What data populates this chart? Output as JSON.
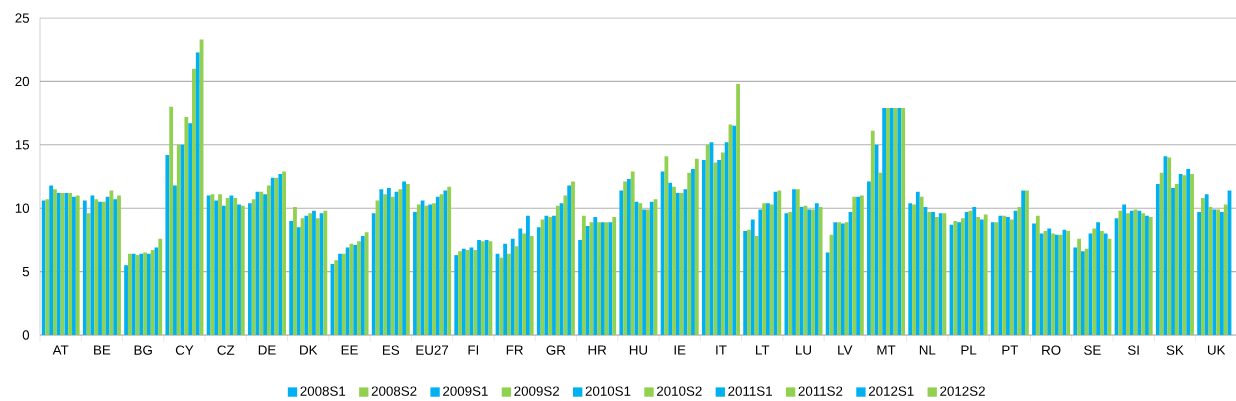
{
  "chart_data": {
    "type": "bar",
    "categories": [
      "AT",
      "BE",
      "BG",
      "CY",
      "CZ",
      "DE",
      "DK",
      "EE",
      "ES",
      "EU27",
      "FI",
      "FR",
      "GR",
      "HR",
      "HU",
      "IE",
      "IT",
      "LT",
      "LU",
      "LV",
      "MT",
      "NL",
      "PL",
      "PT",
      "RO",
      "SE",
      "SI",
      "SK",
      "UK"
    ],
    "ylim": [
      0,
      25
    ],
    "yticks": [
      0,
      5,
      10,
      15,
      20,
      25
    ],
    "grid": "y",
    "legend": "bottom",
    "series": [
      {
        "name": "2008S1",
        "color": "#00b0f0",
        "values": [
          10.6,
          10.6,
          5.5,
          14.2,
          11.0,
          10.4,
          9.0,
          5.6,
          9.6,
          9.7,
          6.3,
          6.4,
          8.5,
          7.5,
          11.4,
          12.9,
          13.8,
          8.2,
          9.6,
          6.5,
          12.1,
          10.4,
          8.7,
          8.9,
          8.8,
          6.9,
          9.2,
          11.9,
          9.7
        ]
      },
      {
        "name": "2008S2",
        "color": "#92d050",
        "values": [
          10.7,
          9.6,
          6.4,
          18.0,
          11.1,
          10.7,
          10.1,
          5.9,
          10.6,
          10.3,
          6.6,
          6.1,
          9.1,
          9.4,
          12.1,
          14.1,
          15.0,
          8.3,
          9.7,
          7.9,
          16.1,
          10.3,
          9.0,
          8.9,
          9.4,
          7.6,
          9.8,
          12.8,
          10.8
        ]
      },
      {
        "name": "2009S1",
        "color": "#00b0f0",
        "values": [
          11.8,
          11.0,
          6.4,
          11.8,
          10.6,
          11.3,
          8.5,
          6.4,
          11.5,
          10.6,
          6.8,
          7.2,
          9.4,
          8.6,
          12.3,
          12.0,
          15.2,
          9.1,
          11.5,
          8.9,
          15.0,
          11.3,
          8.9,
          9.4,
          8.0,
          6.6,
          10.3,
          14.1,
          11.1
        ]
      },
      {
        "name": "2009S2",
        "color": "#92d050",
        "values": [
          11.5,
          10.7,
          6.3,
          15.0,
          11.1,
          11.3,
          9.2,
          6.4,
          11.1,
          10.2,
          6.7,
          6.4,
          9.3,
          8.9,
          12.9,
          11.7,
          13.6,
          7.8,
          11.5,
          8.9,
          12.8,
          10.9,
          9.2,
          9.4,
          8.2,
          6.8,
          9.6,
          14.0,
          10.1
        ]
      },
      {
        "name": "2010S1",
        "color": "#00b0f0",
        "values": [
          11.2,
          10.5,
          6.4,
          15.0,
          10.2,
          11.1,
          9.4,
          6.9,
          11.6,
          10.3,
          6.9,
          7.6,
          9.4,
          9.3,
          10.5,
          11.2,
          13.8,
          9.9,
          10.1,
          8.8,
          17.9,
          10.1,
          9.7,
          9.3,
          8.4,
          8.0,
          9.8,
          11.6,
          9.9
        ]
      },
      {
        "name": "2010S2",
        "color": "#92d050",
        "values": [
          11.2,
          10.5,
          6.5,
          17.2,
          10.8,
          11.8,
          9.6,
          7.2,
          10.9,
          10.4,
          6.7,
          7.0,
          10.2,
          8.9,
          10.4,
          11.2,
          14.4,
          10.4,
          10.2,
          8.9,
          17.9,
          9.7,
          9.8,
          9.1,
          8.0,
          8.4,
          9.9,
          11.9,
          9.9
        ]
      },
      {
        "name": "2011S1",
        "color": "#00b0f0",
        "values": [
          11.2,
          10.9,
          6.4,
          16.7,
          11.0,
          12.4,
          9.8,
          7.1,
          11.3,
          10.9,
          7.5,
          8.4,
          10.4,
          8.9,
          9.9,
          11.5,
          15.2,
          10.4,
          9.9,
          9.7,
          17.9,
          9.7,
          10.1,
          9.8,
          7.9,
          8.9,
          9.8,
          12.7,
          9.7
        ]
      },
      {
        "name": "2011S2",
        "color": "#92d050",
        "values": [
          11.2,
          11.4,
          6.7,
          21.0,
          10.8,
          12.4,
          9.2,
          7.4,
          11.5,
          11.1,
          7.4,
          8.0,
          11.0,
          8.9,
          9.9,
          12.8,
          16.6,
          10.3,
          9.9,
          10.9,
          17.9,
          9.3,
          9.3,
          10.1,
          7.9,
          8.2,
          9.6,
          12.6,
          10.3
        ]
      },
      {
        "name": "2012S1",
        "color": "#00b0f0",
        "values": [
          10.9,
          10.7,
          6.9,
          22.3,
          10.3,
          12.7,
          9.6,
          7.8,
          12.1,
          11.4,
          7.5,
          9.4,
          11.8,
          8.9,
          10.5,
          13.1,
          16.5,
          11.3,
          10.4,
          10.9,
          17.9,
          9.6,
          9.1,
          11.4,
          8.3,
          8.0,
          9.4,
          13.1,
          11.4
        ]
      },
      {
        "name": "2012S2",
        "color": "#92d050",
        "values": [
          11.0,
          11.0,
          7.6,
          23.3,
          10.2,
          12.9,
          9.8,
          8.1,
          11.9,
          11.7,
          7.4,
          7.8,
          12.1,
          9.3,
          10.7,
          13.9,
          19.8,
          11.4,
          10.1,
          11.0,
          17.9,
          9.6,
          9.5,
          11.4,
          8.2,
          7.6,
          9.3,
          12.7,
          null
        ]
      }
    ]
  }
}
